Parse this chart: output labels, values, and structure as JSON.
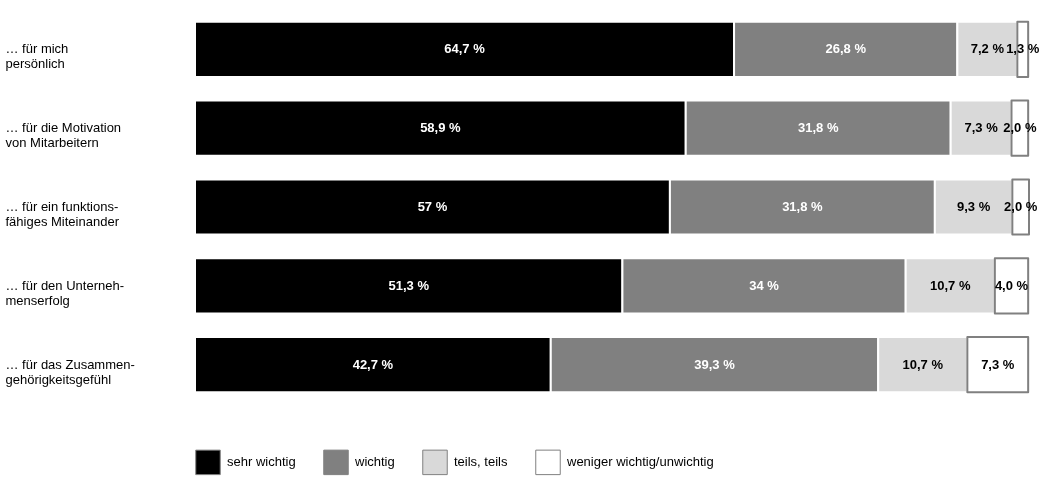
{
  "chart_data": {
    "type": "bar",
    "orientation": "horizontal",
    "stacked": true,
    "legend": "bottom",
    "categories": [
      "… für mich\npersönlich",
      "… für die Motivation\nvon Mitarbeitern",
      "… für ein funktions-\nfähiges Miteinander",
      "… für den Unterneh-\nmenserfolg",
      "… für das Zusammen-\ngehörigkeitsgefühl"
    ],
    "series": [
      {
        "name": "sehr wichtig",
        "color": "#000000",
        "values": [
          64.7,
          58.9,
          57,
          51.3,
          42.7
        ],
        "value_labels": [
          "64,7 %",
          "58,9 %",
          "57 %",
          "51,3 %",
          "42,7 %"
        ]
      },
      {
        "name": "wichtig",
        "color": "#808080",
        "values": [
          26.8,
          31.8,
          31.8,
          34,
          39.3
        ],
        "value_labels": [
          "26,8 %",
          "31,8 %",
          "31,8 %",
          "34 %",
          "39,3 %"
        ]
      },
      {
        "name": "teils, teils",
        "color": "#d9d9d9",
        "values": [
          7.2,
          7.3,
          9.3,
          10.7,
          10.7
        ],
        "value_labels": [
          "7,2 %",
          "7,3  %",
          "9,3 %",
          "10,7 %",
          "10,7 %"
        ]
      },
      {
        "name": "weniger wichtig/unwichtig",
        "color": "#ffffff",
        "values": [
          1.3,
          2.0,
          2.0,
          4.0,
          7.3
        ],
        "value_labels": [
          "1,3 %",
          "2,0 %",
          "2,0 %",
          "4,0 %",
          "7,3 %"
        ]
      }
    ]
  }
}
